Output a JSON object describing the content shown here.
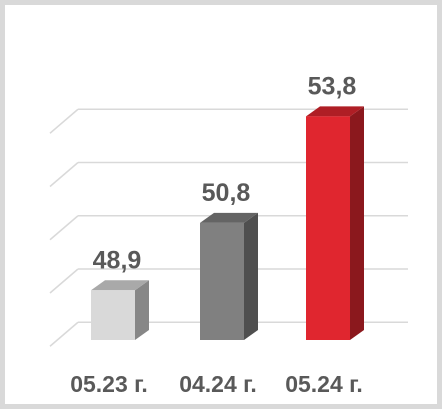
{
  "chart_data": {
    "type": "bar",
    "categories": [
      "05.23 г.",
      "04.24 г.",
      "05.24 г."
    ],
    "values": [
      48.9,
      50.8,
      53.8
    ],
    "value_labels": [
      "48,9",
      "50,8",
      "53,8"
    ],
    "ylim": [
      47.5,
      55
    ],
    "grid": true,
    "legend": "none",
    "colors": {
      "bar_1": "#d9d9d9",
      "bar_2": "#808080",
      "bar_3": "#e0262f",
      "grid": "#d9d9d9",
      "label": "#595959",
      "frame": "#d9d9d9"
    }
  }
}
